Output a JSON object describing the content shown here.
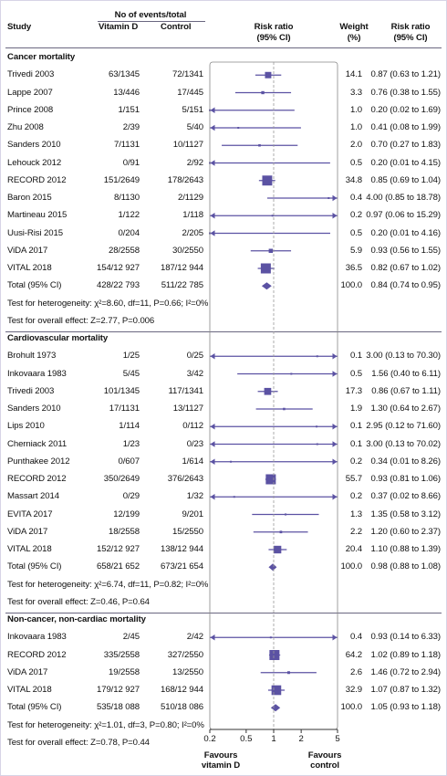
{
  "header": {
    "study": "Study",
    "events": "No of events/total",
    "vitd": "Vitamin D",
    "control": "Control",
    "rr1": "Risk ratio",
    "ci1": "(95% CI)",
    "weight": "Weight",
    "pct": "(%)",
    "rr2": "Risk ratio",
    "ci2": "(95% CI)"
  },
  "favours_left": [
    "Favours",
    "vitamin D"
  ],
  "favours_right": [
    "Favours",
    "control"
  ],
  "chart_data": {
    "type": "forest",
    "x_scale": "log",
    "xlim": [
      0.2,
      5
    ],
    "ticks": [
      "0.2",
      "0.5",
      "1",
      "2",
      "5"
    ],
    "tick_values": [
      0.2,
      0.5,
      1,
      2,
      5
    ],
    "sections": [
      {
        "title": "Cancer mortality",
        "studies": [
          {
            "study": "Trivedi 2003",
            "vitd": "63/1345",
            "control": "72/1341",
            "weight": "14.1",
            "rr_text": "0.87 (0.63 to 1.21)",
            "rr": 0.87,
            "lo": 0.63,
            "hi": 1.21
          },
          {
            "study": "Lappe 2007",
            "vitd": "13/446",
            "control": "17/445",
            "weight": "3.3",
            "rr_text": "0.76 (0.38 to 1.55)",
            "rr": 0.76,
            "lo": 0.38,
            "hi": 1.55
          },
          {
            "study": "Prince 2008",
            "vitd": "1/151",
            "control": "5/151",
            "weight": "1.0",
            "rr_text": "0.20 (0.02 to 1.69)",
            "rr": 0.2,
            "lo": 0.02,
            "hi": 1.69
          },
          {
            "study": "Zhu 2008",
            "vitd": "2/39",
            "control": "5/40",
            "weight": "1.0",
            "rr_text": "0.41 (0.08 to 1.99)",
            "rr": 0.41,
            "lo": 0.08,
            "hi": 1.99
          },
          {
            "study": "Sanders 2010",
            "vitd": "7/1131",
            "control": "10/1127",
            "weight": "2.0",
            "rr_text": "0.70 (0.27 to 1.83)",
            "rr": 0.7,
            "lo": 0.27,
            "hi": 1.83
          },
          {
            "study": "Lehouck 2012",
            "vitd": "0/91",
            "control": "2/92",
            "weight": "0.5",
            "rr_text": "0.20 (0.01 to 4.15)",
            "rr": 0.2,
            "lo": 0.01,
            "hi": 4.15
          },
          {
            "study": "RECORD 2012",
            "vitd": "151/2649",
            "control": "178/2643",
            "weight": "34.8",
            "rr_text": "0.85 (0.69 to 1.04)",
            "rr": 0.85,
            "lo": 0.69,
            "hi": 1.04
          },
          {
            "study": "Baron 2015",
            "vitd": "8/1130",
            "control": "2/1129",
            "weight": "0.4",
            "rr_text": "4.00 (0.85 to 18.78)",
            "rr": 4.0,
            "lo": 0.85,
            "hi": 18.78
          },
          {
            "study": "Martineau 2015",
            "vitd": "1/122",
            "control": "1/118",
            "weight": "0.2",
            "rr_text": "0.97 (0.06 to 15.29)",
            "rr": 0.97,
            "lo": 0.06,
            "hi": 15.29
          },
          {
            "study": "Uusi-Risi 2015",
            "vitd": "0/204",
            "control": "2/205",
            "weight": "0.5",
            "rr_text": "0.20 (0.01 to 4.16)",
            "rr": 0.2,
            "lo": 0.01,
            "hi": 4.16
          },
          {
            "study": "ViDA 2017",
            "vitd": "28/2558",
            "control": "30/2550",
            "weight": "5.9",
            "rr_text": "0.93 (0.56 to 1.55)",
            "rr": 0.93,
            "lo": 0.56,
            "hi": 1.55
          },
          {
            "study": "VITAL 2018",
            "vitd": "154/12 927",
            "control": "187/12 944",
            "weight": "36.5",
            "rr_text": "0.82 (0.67 to 1.02)",
            "rr": 0.82,
            "lo": 0.67,
            "hi": 1.02
          }
        ],
        "total": {
          "study": "Total (95% CI)",
          "vitd": "428/22 793",
          "control": "511/22 785",
          "weight": "100.0",
          "rr_text": "0.84 (0.74 to 0.95)",
          "rr": 0.84,
          "lo": 0.74,
          "hi": 0.95
        },
        "heterogeneity": "Test for heterogeneity: χ²=8.60, df=11, P=0.66; I²=0%",
        "overall": "Test for overall effect: Z=2.77, P=0.006"
      },
      {
        "title": "Cardiovascular mortality",
        "studies": [
          {
            "study": "Brohult 1973",
            "vitd": "1/25",
            "control": "0/25",
            "weight": "0.1",
            "rr_text": "3.00 (0.13 to 70.30)",
            "rr": 3.0,
            "lo": 0.13,
            "hi": 70.3
          },
          {
            "study": "Inkovaara 1983",
            "vitd": "5/45",
            "control": "3/42",
            "weight": "0.5",
            "rr_text": "1.56 (0.40 to 6.11)",
            "rr": 1.56,
            "lo": 0.4,
            "hi": 6.11
          },
          {
            "study": "Trivedi 2003",
            "vitd": "101/1345",
            "control": "117/1341",
            "weight": "17.3",
            "rr_text": "0.86 (0.67 to 1.11)",
            "rr": 0.86,
            "lo": 0.67,
            "hi": 1.11
          },
          {
            "study": "Sanders 2010",
            "vitd": "17/1131",
            "control": "13/1127",
            "weight": "1.9",
            "rr_text": "1.30 (0.64 to 2.67)",
            "rr": 1.3,
            "lo": 0.64,
            "hi": 2.67
          },
          {
            "study": "Lips 2010",
            "vitd": "1/114",
            "control": "0/112",
            "weight": "0.1",
            "rr_text": "2.95 (0.12 to 71.60)",
            "rr": 2.95,
            "lo": 0.12,
            "hi": 71.6
          },
          {
            "study": "Cherniack 2011",
            "vitd": "1/23",
            "control": "0/23",
            "weight": "0.1",
            "rr_text": "3.00 (0.13 to 70.02)",
            "rr": 3.0,
            "lo": 0.13,
            "hi": 70.02
          },
          {
            "study": "Punthakee 2012",
            "vitd": "0/607",
            "control": "1/614",
            "weight": "0.2",
            "rr_text": "0.34 (0.01 to 8.26)",
            "rr": 0.34,
            "lo": 0.01,
            "hi": 8.26
          },
          {
            "study": "RECORD 2012",
            "vitd": "350/2649",
            "control": "376/2643",
            "weight": "55.7",
            "rr_text": "0.93 (0.81 to 1.06)",
            "rr": 0.93,
            "lo": 0.81,
            "hi": 1.06
          },
          {
            "study": "Massart 2014",
            "vitd": "0/29",
            "control": "1/32",
            "weight": "0.2",
            "rr_text": "0.37 (0.02 to 8.66)",
            "rr": 0.37,
            "lo": 0.02,
            "hi": 8.66
          },
          {
            "study": "EVITA 2017",
            "vitd": "12/199",
            "control": "9/201",
            "weight": "1.3",
            "rr_text": "1.35 (0.58 to 3.12)",
            "rr": 1.35,
            "lo": 0.58,
            "hi": 3.12
          },
          {
            "study": "ViDA 2017",
            "vitd": "18/2558",
            "control": "15/2550",
            "weight": "2.2",
            "rr_text": "1.20 (0.60 to 2.37)",
            "rr": 1.2,
            "lo": 0.6,
            "hi": 2.37
          },
          {
            "study": "VITAL 2018",
            "vitd": "152/12 927",
            "control": "138/12 944",
            "weight": "20.4",
            "rr_text": "1.10 (0.88 to 1.39)",
            "rr": 1.1,
            "lo": 0.88,
            "hi": 1.39
          }
        ],
        "total": {
          "study": "Total (95% CI)",
          "vitd": "658/21 652",
          "control": "673/21 654",
          "weight": "100.0",
          "rr_text": "0.98 (0.88 to 1.08)",
          "rr": 0.98,
          "lo": 0.88,
          "hi": 1.08
        },
        "heterogeneity": "Test for heterogeneity: χ²=6.74, df=11, P=0.82; I²=0%",
        "overall": "Test for overall effect: Z=0.46, P=0.64"
      },
      {
        "title": "Non-cancer, non-cardiac mortality",
        "studies": [
          {
            "study": "Inkovaara 1983",
            "vitd": "2/45",
            "control": "2/42",
            "weight": "0.4",
            "rr_text": "0.93 (0.14 to 6.33)",
            "rr": 0.93,
            "lo": 0.14,
            "hi": 6.33
          },
          {
            "study": "RECORD 2012",
            "vitd": "335/2558",
            "control": "327/2550",
            "weight": "64.2",
            "rr_text": "1.02 (0.89 to 1.18)",
            "rr": 1.02,
            "lo": 0.89,
            "hi": 1.18
          },
          {
            "study": "ViDA 2017",
            "vitd": "19/2558",
            "control": "13/2550",
            "weight": "2.6",
            "rr_text": "1.46 (0.72 to 2.94)",
            "rr": 1.46,
            "lo": 0.72,
            "hi": 2.94
          },
          {
            "study": "VITAL 2018",
            "vitd": "179/12 927",
            "control": "168/12 944",
            "weight": "32.9",
            "rr_text": "1.07 (0.87 to 1.32)",
            "rr": 1.07,
            "lo": 0.87,
            "hi": 1.32
          }
        ],
        "total": {
          "study": "Total (95% CI)",
          "vitd": "535/18 088",
          "control": "510/18 086",
          "weight": "100.0",
          "rr_text": "1.05 (0.93 to 1.18)",
          "rr": 1.05,
          "lo": 0.93,
          "hi": 1.18
        },
        "heterogeneity": "Test for heterogeneity: χ²=1.01, df=3, P=0.80; I²=0%",
        "overall": "Test for overall effect: Z=0.78, P=0.44"
      }
    ]
  },
  "colors": {
    "mark": "#5b52a3",
    "axis": "#333333",
    "box": "#888888",
    "grid": "#999999"
  }
}
